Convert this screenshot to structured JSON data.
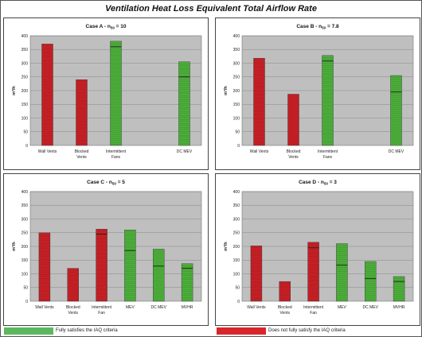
{
  "page_title": "Ventilation Heat Loss Equivalent Total Airflow Rate",
  "legend": [
    {
      "label": "Fully satisfies the IAQ criteria",
      "color": "#5cb85c"
    },
    {
      "label": "Does not fully satisfy the IAQ criteria",
      "color": "#d9262b"
    }
  ],
  "colors": {
    "pass": "#4cae3a",
    "fail": "#c62026",
    "plot_bg": "#bfbfbf"
  },
  "chart_data": [
    {
      "type": "bar",
      "title": "Case A - n50 = 10",
      "title_main": "Case A - n",
      "title_sub": "50",
      "title_tail": " = 10",
      "ylabel": "m³/h",
      "ylim": [
        0,
        400
      ],
      "yticks": [
        0,
        50,
        100,
        150,
        200,
        250,
        300,
        350,
        400
      ],
      "categories": [
        "Wall Vents",
        "Blocked Vents",
        "Intermittent Fans",
        "DC MEV"
      ],
      "category_lines": [
        [
          "Wall Vents"
        ],
        [
          "Blocked",
          "Vents"
        ],
        [
          "Intermittent",
          "Fans"
        ],
        [
          "DC MEV"
        ]
      ],
      "slots": [
        0,
        1,
        2,
        4
      ],
      "n_slots": 5,
      "values": [
        370,
        240,
        380,
        305
      ],
      "inner_marks": [
        null,
        null,
        360,
        250
      ],
      "status": [
        "fail",
        "fail",
        "pass",
        "pass"
      ]
    },
    {
      "type": "bar",
      "title": "Case B - n50 = 7.8",
      "title_main": "Case B - n",
      "title_sub": "50",
      "title_tail": " = 7.8",
      "ylabel": "m³/h",
      "ylim": [
        0,
        400
      ],
      "yticks": [
        0,
        50,
        100,
        150,
        200,
        250,
        300,
        350,
        400
      ],
      "categories": [
        "Wall Vents",
        "Blocked Vents",
        "Intermittent Fans",
        "DC MEV"
      ],
      "category_lines": [
        [
          "Wall Vents"
        ],
        [
          "Blocked",
          "Vents"
        ],
        [
          "Intermittent",
          "Fans"
        ],
        [
          "DC MEV"
        ]
      ],
      "slots": [
        0,
        1,
        2,
        4
      ],
      "n_slots": 5,
      "values": [
        318,
        187,
        328,
        255
      ],
      "inner_marks": [
        null,
        null,
        308,
        195
      ],
      "status": [
        "fail",
        "fail",
        "pass",
        "pass"
      ]
    },
    {
      "type": "bar",
      "title": "Case C - n50 = 5",
      "title_main": "Case C - n",
      "title_sub": "50",
      "title_tail": " = 5",
      "ylabel": "m³/h",
      "ylim": [
        0,
        400
      ],
      "yticks": [
        0,
        50,
        100,
        150,
        200,
        250,
        300,
        350,
        400
      ],
      "categories": [
        "Wall Vents",
        "Blocked Vents",
        "Intermittent Fan",
        "MEV",
        "DC MEV",
        "MVHR"
      ],
      "category_lines": [
        [
          "Wall Vents"
        ],
        [
          "Blocked",
          "Vents"
        ],
        [
          "Intermittent",
          "Fan"
        ],
        [
          "MEV"
        ],
        [
          "DC MEV"
        ],
        [
          "MVHR"
        ]
      ],
      "slots": [
        0,
        1,
        2,
        3,
        4,
        5
      ],
      "n_slots": 6,
      "values": [
        250,
        120,
        263,
        260,
        190,
        137
      ],
      "inner_marks": [
        null,
        null,
        245,
        185,
        128,
        120
      ],
      "status": [
        "fail",
        "fail",
        "fail",
        "pass",
        "pass",
        "pass"
      ]
    },
    {
      "type": "bar",
      "title": "Case D - n50 = 3",
      "title_main": "Case D - n",
      "title_sub": "50",
      "title_tail": " = 3",
      "ylabel": "m³/h",
      "ylim": [
        0,
        400
      ],
      "yticks": [
        0,
        50,
        100,
        150,
        200,
        250,
        300,
        350,
        400
      ],
      "categories": [
        "Wall Vents",
        "Blocked Vents",
        "Intermittent Fan",
        "MEV",
        "DC MEV",
        "MVHR"
      ],
      "category_lines": [
        [
          "Wall Vents"
        ],
        [
          "Blocked",
          "Vents"
        ],
        [
          "Intermittent",
          "Fan"
        ],
        [
          "MEV"
        ],
        [
          "DC MEV"
        ],
        [
          "MVHR"
        ]
      ],
      "slots": [
        0,
        1,
        2,
        3,
        4,
        5
      ],
      "n_slots": 6,
      "values": [
        202,
        72,
        215,
        210,
        145,
        90
      ],
      "inner_marks": [
        null,
        null,
        195,
        132,
        83,
        72
      ],
      "status": [
        "fail",
        "fail",
        "fail",
        "pass",
        "pass",
        "pass"
      ]
    }
  ]
}
